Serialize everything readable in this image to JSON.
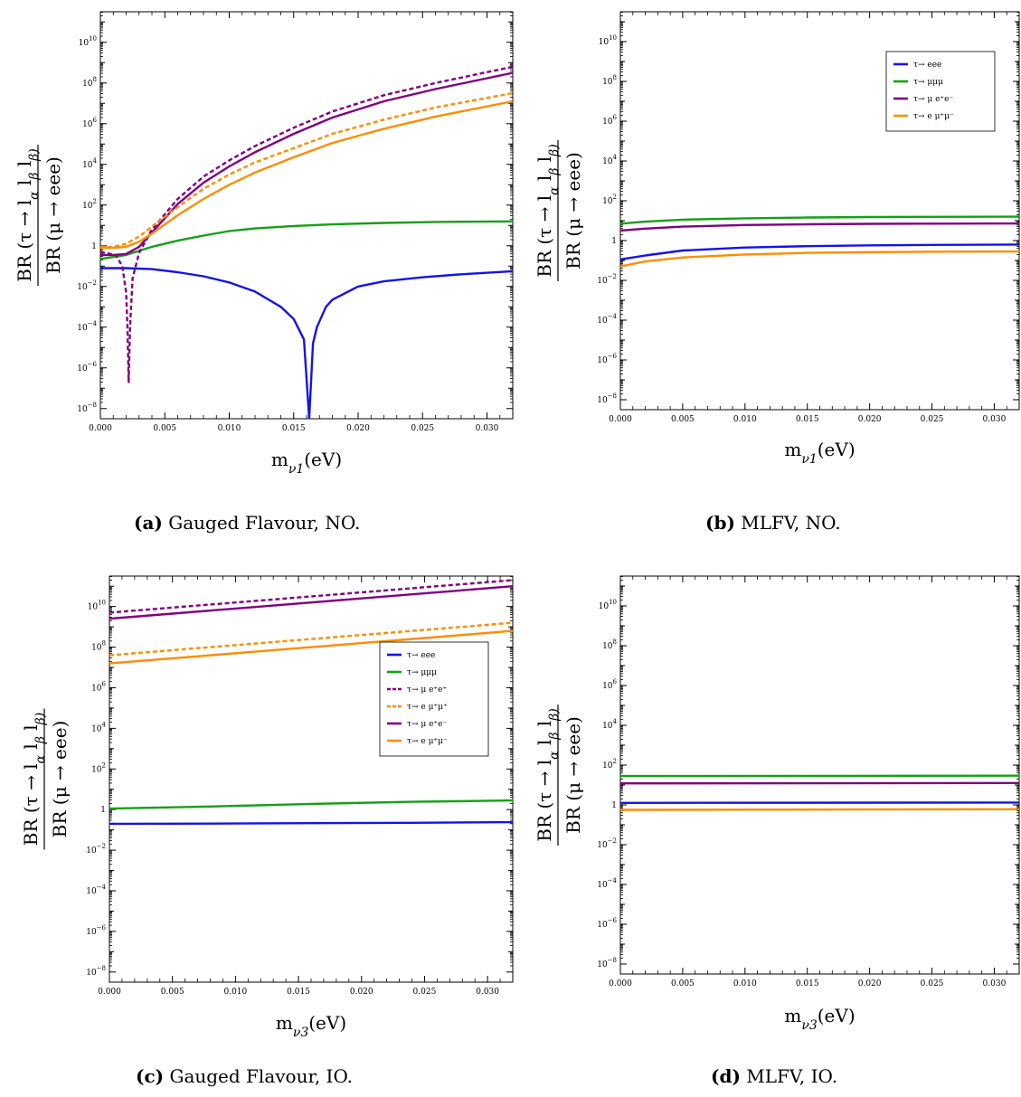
{
  "figure": {
    "captions": [
      {
        "tag": "(a)",
        "text": "Gauged Flavour, NO."
      },
      {
        "tag": "(b)",
        "text": "MLFV, NO."
      },
      {
        "tag": "(c)",
        "text": "Gauged Flavour, IO."
      },
      {
        "tag": "(d)",
        "text": "MLFV, IO."
      }
    ]
  },
  "colors": {
    "blue": "#1414e6",
    "green": "#14a014",
    "purple": "#800080",
    "orange": "#ff8c00"
  },
  "chart_data": [
    {
      "type": "line",
      "panel": "a",
      "xlabel": "m_ν1(eV)",
      "ylabel_numerator": "BR (τ → l_α l_β l_β)",
      "ylabel_denominator": "BR (μ → eee)",
      "xlim": [
        0,
        0.032
      ],
      "ylim_log10": [
        -8.5,
        11.5
      ],
      "y_scale": "log",
      "x_ticks": [
        "0.000",
        "0.005",
        "0.010",
        "0.015",
        "0.020",
        "0.025",
        "0.030"
      ],
      "y_ticks": [
        "10^-8",
        "10^-6",
        "10^-4",
        "10^-2",
        "1",
        "10^2",
        "10^4",
        "10^6",
        "10^8",
        "10^10"
      ],
      "legend": null,
      "series": [
        {
          "color": "blue",
          "dashed": false,
          "x": [
            0,
            0.002,
            0.004,
            0.006,
            0.008,
            0.01,
            0.012,
            0.014,
            0.015,
            0.0158,
            0.0162,
            0.0165,
            0.0168,
            0.0175,
            0.018,
            0.02,
            0.022,
            0.025,
            0.028,
            0.032
          ],
          "y_log10": [
            -1.1,
            -1.1,
            -1.15,
            -1.3,
            -1.5,
            -1.8,
            -2.25,
            -3.0,
            -3.6,
            -4.6,
            -8.5,
            -4.8,
            -4.0,
            -3.0,
            -2.65,
            -2.0,
            -1.75,
            -1.55,
            -1.4,
            -1.25
          ]
        },
        {
          "color": "green",
          "dashed": false,
          "x": [
            0,
            0.002,
            0.004,
            0.006,
            0.008,
            0.01,
            0.012,
            0.015,
            0.018,
            0.022,
            0.026,
            0.032
          ],
          "y_log10": [
            -0.65,
            -0.45,
            -0.05,
            0.25,
            0.5,
            0.72,
            0.85,
            0.97,
            1.05,
            1.12,
            1.17,
            1.2
          ]
        },
        {
          "color": "purple",
          "dashed": true,
          "x": [
            0,
            0.0012,
            0.0017,
            0.002,
            0.0021,
            0.0022,
            0.0023,
            0.0025,
            0.003,
            0.004,
            0.006,
            0.008,
            0.01,
            0.012,
            0.015,
            0.018,
            0.022,
            0.026,
            0.032
          ],
          "y_log10": [
            -0.3,
            -0.45,
            -1.0,
            -2.3,
            -4.0,
            -6.7,
            -4.0,
            -1.6,
            -0.35,
            0.8,
            2.3,
            3.4,
            4.2,
            4.9,
            5.8,
            6.6,
            7.4,
            8.0,
            8.8
          ]
        },
        {
          "color": "purple",
          "dashed": false,
          "x": [
            0,
            0.001,
            0.002,
            0.003,
            0.004,
            0.006,
            0.008,
            0.01,
            0.012,
            0.015,
            0.018,
            0.022,
            0.026,
            0.032
          ],
          "y_log10": [
            -0.45,
            -0.45,
            -0.4,
            -0.05,
            0.65,
            2.05,
            3.1,
            3.9,
            4.6,
            5.5,
            6.3,
            7.1,
            7.7,
            8.5
          ]
        },
        {
          "color": "orange",
          "dashed": true,
          "x": [
            0,
            0.001,
            0.002,
            0.003,
            0.004,
            0.006,
            0.008,
            0.01,
            0.012,
            0.015,
            0.018,
            0.022,
            0.026,
            0.032
          ],
          "y_log10": [
            -0.05,
            -0.05,
            0.1,
            0.45,
            0.95,
            1.9,
            2.8,
            3.5,
            4.1,
            4.8,
            5.5,
            6.2,
            6.8,
            7.5
          ]
        },
        {
          "color": "orange",
          "dashed": false,
          "x": [
            0,
            0.001,
            0.002,
            0.003,
            0.004,
            0.006,
            0.008,
            0.01,
            0.012,
            0.015,
            0.018,
            0.022,
            0.026,
            0.032
          ],
          "y_log10": [
            -0.1,
            -0.1,
            -0.05,
            0.2,
            0.6,
            1.5,
            2.3,
            3.0,
            3.6,
            4.35,
            5.05,
            5.75,
            6.35,
            7.1
          ]
        }
      ]
    },
    {
      "type": "line",
      "panel": "b",
      "xlabel": "m_ν1(eV)",
      "ylabel_numerator": "BR (τ → l_α l_β l_β)",
      "ylabel_denominator": "BR (μ → eee)",
      "xlim": [
        0,
        0.032
      ],
      "ylim_log10": [
        -8.5,
        11.5
      ],
      "y_scale": "log",
      "x_ticks": [
        "0.000",
        "0.005",
        "0.010",
        "0.015",
        "0.020",
        "0.025",
        "0.030"
      ],
      "y_ticks": [
        "10^-8",
        "10^-6",
        "10^-4",
        "10^-2",
        "1",
        "10^2",
        "10^4",
        "10^6",
        "10^8",
        "10^10"
      ],
      "legend": {
        "position": "top-right",
        "entries": [
          {
            "label": "τ→ eee",
            "color": "blue",
            "dashed": false
          },
          {
            "label": "τ→ μμμ",
            "color": "green",
            "dashed": false
          },
          {
            "label": "τ→ μ e⁺e⁻",
            "color": "purple",
            "dashed": false
          },
          {
            "label": "τ→ e μ⁺μ⁻",
            "color": "orange",
            "dashed": false
          }
        ]
      },
      "series": [
        {
          "color": "blue",
          "dashed": false,
          "x": [
            0,
            0.002,
            0.005,
            0.01,
            0.015,
            0.02,
            0.025,
            0.032
          ],
          "y_log10": [
            -0.95,
            -0.75,
            -0.5,
            -0.35,
            -0.28,
            -0.24,
            -0.22,
            -0.2
          ]
        },
        {
          "color": "green",
          "dashed": false,
          "x": [
            0,
            0.002,
            0.005,
            0.01,
            0.015,
            0.02,
            0.025,
            0.032
          ],
          "y_log10": [
            0.85,
            0.95,
            1.05,
            1.12,
            1.16,
            1.18,
            1.19,
            1.2
          ]
        },
        {
          "color": "purple",
          "dashed": false,
          "x": [
            0,
            0.002,
            0.005,
            0.01,
            0.015,
            0.02,
            0.025,
            0.032
          ],
          "y_log10": [
            0.5,
            0.6,
            0.7,
            0.78,
            0.82,
            0.84,
            0.85,
            0.86
          ]
        },
        {
          "color": "orange",
          "dashed": false,
          "x": [
            0,
            0.002,
            0.005,
            0.01,
            0.015,
            0.02,
            0.025,
            0.032
          ],
          "y_log10": [
            -1.3,
            -1.05,
            -0.85,
            -0.7,
            -0.62,
            -0.58,
            -0.56,
            -0.55
          ]
        }
      ]
    },
    {
      "type": "line",
      "panel": "c",
      "xlabel": "m_ν3(eV)",
      "ylabel_numerator": "BR (τ → l_α l_β l_β)",
      "ylabel_denominator": "BR (μ → eee)",
      "xlim": [
        0,
        0.032
      ],
      "ylim_log10": [
        -8.5,
        11.5
      ],
      "y_scale": "log",
      "x_ticks": [
        "0.000",
        "0.005",
        "0.010",
        "0.015",
        "0.020",
        "0.025",
        "0.030"
      ],
      "y_ticks": [
        "10^-8",
        "10^-6",
        "10^-4",
        "10^-2",
        "1",
        "10^2",
        "10^4",
        "10^6",
        "10^8",
        "10^10"
      ],
      "legend": {
        "position": "center-right",
        "entries": [
          {
            "label": "τ→ eee",
            "color": "blue",
            "dashed": false
          },
          {
            "label": "τ→ μμμ",
            "color": "green",
            "dashed": false
          },
          {
            "label": "τ→ μ e⁺e⁺",
            "color": "purple",
            "dashed": true
          },
          {
            "label": "τ→ e μ⁺μ⁺",
            "color": "orange",
            "dashed": true
          },
          {
            "label": "τ→ μ e⁺e⁻",
            "color": "purple",
            "dashed": false
          },
          {
            "label": "τ→ e μ⁺μ⁻",
            "color": "orange",
            "dashed": false
          }
        ]
      },
      "series": [
        {
          "color": "blue",
          "dashed": false,
          "x": [
            0,
            0.008,
            0.016,
            0.024,
            0.032
          ],
          "y_log10": [
            -0.7,
            -0.69,
            -0.67,
            -0.65,
            -0.62
          ]
        },
        {
          "color": "green",
          "dashed": false,
          "x": [
            0,
            0.008,
            0.016,
            0.024,
            0.032
          ],
          "y_log10": [
            0.05,
            0.15,
            0.28,
            0.38,
            0.45
          ]
        },
        {
          "color": "purple",
          "dashed": true,
          "x": [
            0,
            0.005,
            0.01,
            0.015,
            0.02,
            0.025,
            0.032
          ],
          "y_log10": [
            9.7,
            9.95,
            10.2,
            10.45,
            10.7,
            10.95,
            11.3
          ]
        },
        {
          "color": "purple",
          "dashed": false,
          "x": [
            0,
            0.005,
            0.01,
            0.015,
            0.02,
            0.025,
            0.032
          ],
          "y_log10": [
            9.4,
            9.65,
            9.9,
            10.15,
            10.4,
            10.65,
            11.0
          ]
        },
        {
          "color": "orange",
          "dashed": true,
          "x": [
            0,
            0.005,
            0.01,
            0.015,
            0.02,
            0.025,
            0.032
          ],
          "y_log10": [
            7.6,
            7.85,
            8.1,
            8.35,
            8.6,
            8.85,
            9.2
          ]
        },
        {
          "color": "orange",
          "dashed": false,
          "x": [
            0,
            0.005,
            0.01,
            0.015,
            0.02,
            0.025,
            0.032
          ],
          "y_log10": [
            7.2,
            7.45,
            7.7,
            7.95,
            8.2,
            8.45,
            8.8
          ]
        }
      ]
    },
    {
      "type": "line",
      "panel": "d",
      "xlabel": "m_ν3(eV)",
      "ylabel_numerator": "BR (τ → l_α l_β l_β)",
      "ylabel_denominator": "BR (μ → eee)",
      "xlim": [
        0,
        0.032
      ],
      "ylim_log10": [
        -8.5,
        11.5
      ],
      "y_scale": "log",
      "x_ticks": [
        "0.000",
        "0.005",
        "0.010",
        "0.015",
        "0.020",
        "0.025",
        "0.030"
      ],
      "y_ticks": [
        "10^-8",
        "10^-6",
        "10^-4",
        "10^-2",
        "1",
        "10^2",
        "10^4",
        "10^6",
        "10^8",
        "10^10"
      ],
      "legend": null,
      "series": [
        {
          "color": "blue",
          "dashed": false,
          "x": [
            0,
            0.032
          ],
          "y_log10": [
            0.1,
            0.12
          ]
        },
        {
          "color": "green",
          "dashed": false,
          "x": [
            0,
            0.032
          ],
          "y_log10": [
            1.45,
            1.47
          ]
        },
        {
          "color": "purple",
          "dashed": false,
          "x": [
            0,
            0.032
          ],
          "y_log10": [
            1.08,
            1.1
          ]
        },
        {
          "color": "orange",
          "dashed": false,
          "x": [
            0,
            0.032
          ],
          "y_log10": [
            -0.25,
            -0.22
          ]
        }
      ]
    }
  ]
}
